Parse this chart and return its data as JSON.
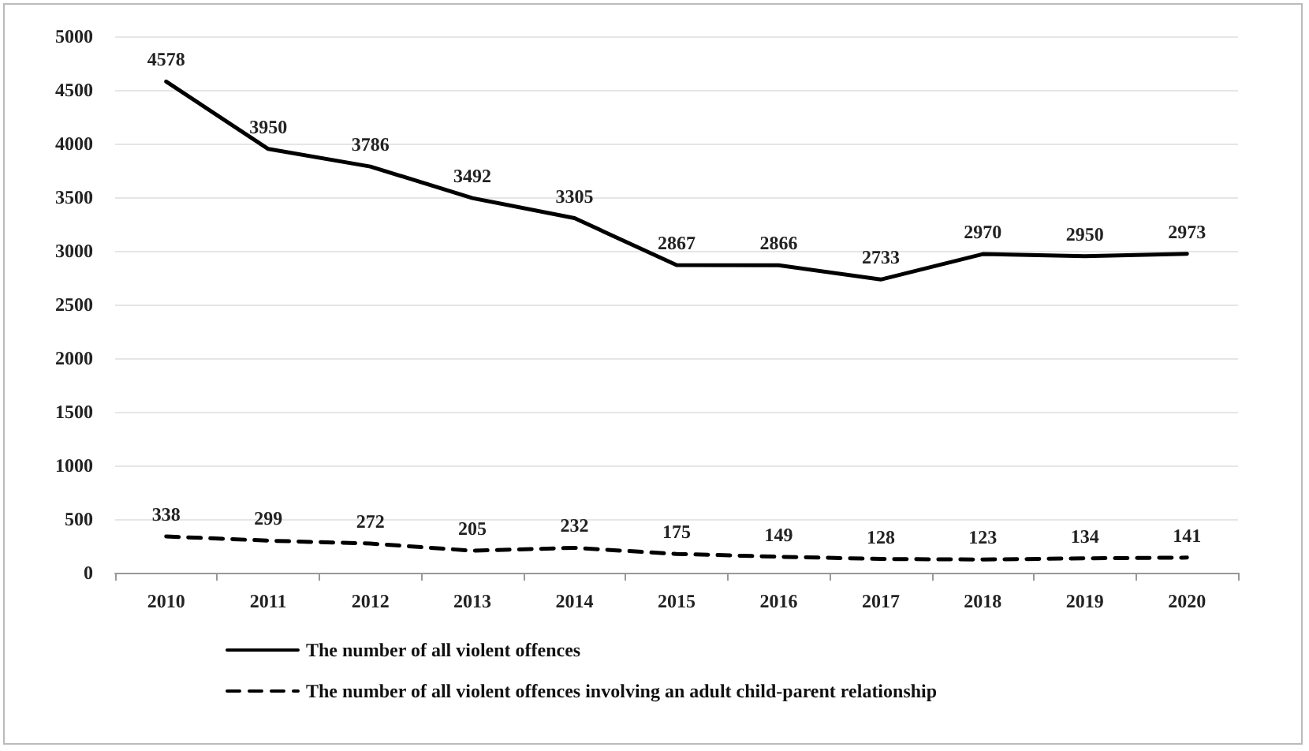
{
  "chart_data": {
    "type": "line",
    "categories": [
      "2010",
      "2011",
      "2012",
      "2013",
      "2014",
      "2015",
      "2016",
      "2017",
      "2018",
      "2019",
      "2020"
    ],
    "series": [
      {
        "name": "The number of all violent offences",
        "color": "#000000",
        "line_style": "solid",
        "values": [
          4578,
          3950,
          3786,
          3492,
          3305,
          2867,
          2866,
          2733,
          2970,
          2950,
          2973
        ]
      },
      {
        "name": "The number of all violent offences involving an adult child-parent relationship",
        "color": "#000000",
        "line_style": "dashed",
        "values": [
          338,
          299,
          272,
          205,
          232,
          175,
          149,
          128,
          123,
          134,
          141
        ]
      }
    ],
    "ylim": [
      0,
      5000
    ],
    "yticks": [
      0,
      500,
      1000,
      1500,
      2000,
      2500,
      3000,
      3500,
      4000,
      4500,
      5000
    ],
    "grid": "y",
    "legend": "bottom left",
    "marker": "none",
    "data_labels": true
  }
}
